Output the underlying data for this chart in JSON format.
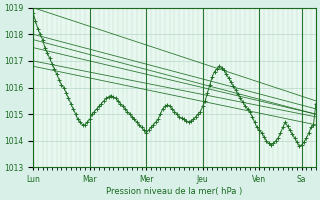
{
  "bg_color": "#d8f0e8",
  "plot_bg_color": "#e8f8f0",
  "grid_color": "#b8d8c8",
  "line_color": "#1a6b20",
  "xlabel": "Pression niveau de la mer( hPa )",
  "ylim": [
    1013,
    1019
  ],
  "yticks": [
    1013,
    1014,
    1015,
    1016,
    1017,
    1018,
    1019
  ],
  "day_labels": [
    "Lun",
    "Mar",
    "Mer",
    "Jeu",
    "Ven",
    "Sa"
  ],
  "day_positions": [
    0,
    48,
    96,
    144,
    192,
    228
  ],
  "total_hours": 240,
  "series": [
    [
      1019.0,
      1018.0,
      1017.0,
      1016.5,
      1015.5
    ],
    [
      1018.0,
      1017.2,
      1016.3,
      1015.8,
      1015.2
    ],
    [
      1017.8,
      1016.8,
      1015.9,
      1015.5,
      1015.0
    ],
    [
      1017.5,
      1016.5,
      1015.7,
      1015.4,
      1015.0
    ],
    [
      1017.0,
      1016.2,
      1015.4,
      1015.1,
      1014.9
    ],
    [
      1016.8,
      1015.8,
      1015.0,
      1014.8,
      1014.6
    ]
  ],
  "detail_series_x": [
    0,
    2,
    4,
    6,
    8,
    10,
    12,
    14,
    16,
    18,
    20,
    22,
    24,
    26,
    28,
    30,
    32,
    34,
    36,
    38,
    40,
    42,
    44,
    46,
    48,
    50,
    52,
    54,
    56,
    58,
    60,
    62,
    64,
    66,
    68,
    70,
    72,
    74,
    76,
    78,
    80,
    82,
    84,
    86,
    88,
    90,
    92,
    94,
    96,
    98,
    100,
    102,
    104,
    106,
    108,
    110,
    112,
    114,
    116,
    118,
    120,
    122,
    124,
    126,
    128,
    130,
    132,
    134,
    136,
    138,
    140,
    142,
    144,
    146,
    148,
    150,
    152,
    154,
    156,
    158,
    160,
    162,
    164,
    166,
    168,
    170,
    172,
    174,
    176,
    178,
    180,
    182,
    184,
    186,
    188,
    190,
    192,
    194,
    196,
    198,
    200,
    202,
    204,
    206,
    208,
    210,
    212,
    214,
    216,
    218,
    220,
    222,
    224,
    226,
    228,
    230,
    232,
    234,
    236,
    238,
    240
  ],
  "detail_series_y": [
    1018.8,
    1018.5,
    1018.2,
    1018.0,
    1017.8,
    1017.5,
    1017.3,
    1017.1,
    1016.9,
    1016.7,
    1016.5,
    1016.3,
    1016.1,
    1016.0,
    1015.8,
    1015.6,
    1015.4,
    1015.2,
    1015.0,
    1014.8,
    1014.7,
    1014.6,
    1014.6,
    1014.7,
    1014.8,
    1015.0,
    1015.1,
    1015.2,
    1015.3,
    1015.4,
    1015.5,
    1015.6,
    1015.65,
    1015.7,
    1015.65,
    1015.6,
    1015.5,
    1015.4,
    1015.3,
    1015.2,
    1015.1,
    1015.0,
    1014.9,
    1014.8,
    1014.7,
    1014.6,
    1014.5,
    1014.4,
    1014.3,
    1014.4,
    1014.5,
    1014.6,
    1014.7,
    1014.8,
    1015.0,
    1015.2,
    1015.3,
    1015.35,
    1015.3,
    1015.2,
    1015.1,
    1015.0,
    1014.9,
    1014.85,
    1014.8,
    1014.75,
    1014.7,
    1014.75,
    1014.8,
    1014.9,
    1015.0,
    1015.1,
    1015.3,
    1015.5,
    1015.8,
    1016.1,
    1016.4,
    1016.6,
    1016.7,
    1016.8,
    1016.75,
    1016.65,
    1016.5,
    1016.35,
    1016.2,
    1016.05,
    1015.9,
    1015.75,
    1015.6,
    1015.45,
    1015.3,
    1015.2,
    1015.1,
    1014.9,
    1014.7,
    1014.5,
    1014.4,
    1014.3,
    1014.15,
    1014.0,
    1013.9,
    1013.85,
    1013.9,
    1014.0,
    1014.1,
    1014.3,
    1014.5,
    1014.7,
    1014.55,
    1014.4,
    1014.25,
    1014.1,
    1013.95,
    1013.8,
    1013.85,
    1013.95,
    1014.1,
    1014.3,
    1014.5,
    1014.6,
    1015.4
  ]
}
